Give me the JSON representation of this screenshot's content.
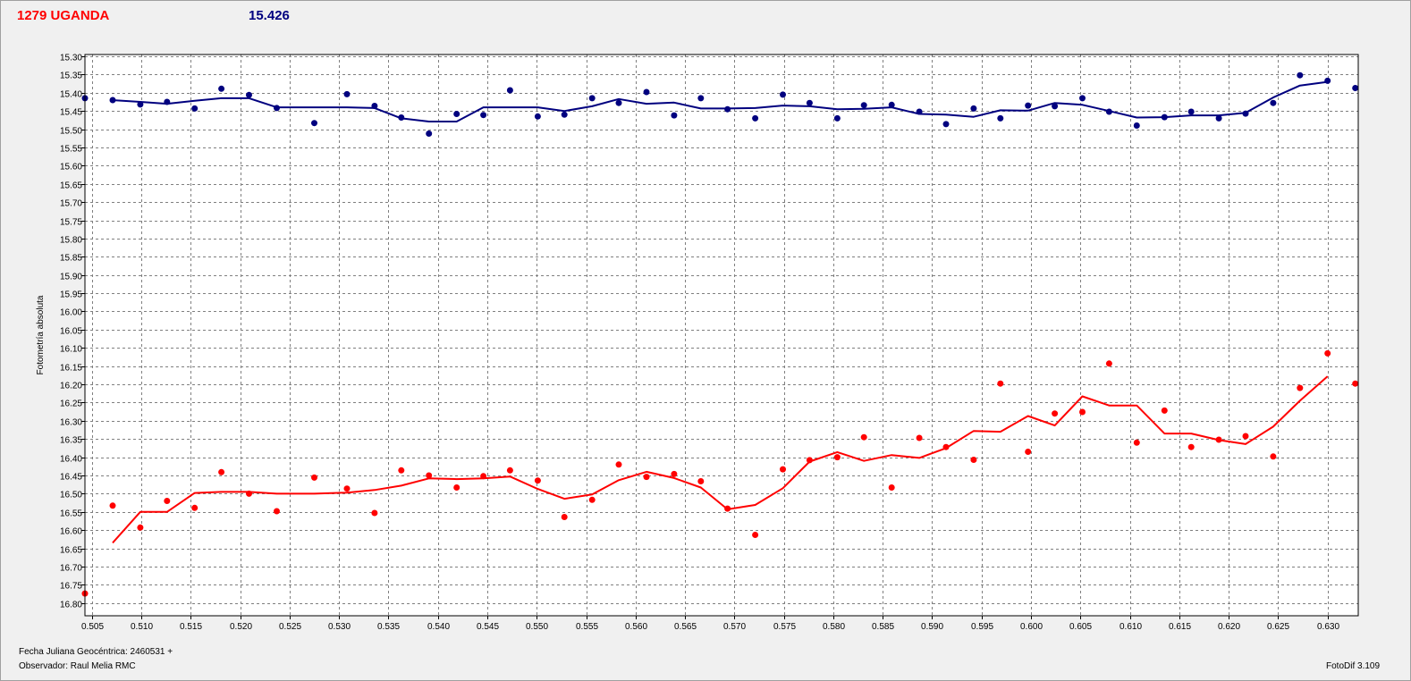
{
  "header": {
    "object_name": "1279 UGANDA",
    "comparison_value": "15.426"
  },
  "footer": {
    "date_label": "Fecha Juliana Geocéntrica: 2460531 +",
    "observer_label": "Observador: Raul Melia RMC",
    "software_label": "FotoDif 3.109"
  },
  "colors": {
    "series_blue": "#00007f",
    "series_red": "#ff0000",
    "grid": "#7f7f7f",
    "plot_bg": "#ffffff",
    "window_bg": "#f0f0f0"
  },
  "chart_data": {
    "type": "scatter",
    "ylabel": "Fotometría absoluta",
    "xlabel": "",
    "y_inverted": true,
    "grid": true,
    "xlim": [
      0.5043,
      0.6331
    ],
    "ylim": [
      15.295,
      16.835
    ],
    "x_ticks": [
      "0.505",
      "0.510",
      "0.515",
      "0.520",
      "0.525",
      "0.530",
      "0.535",
      "0.540",
      "0.545",
      "0.550",
      "0.555",
      "0.560",
      "0.565",
      "0.570",
      "0.575",
      "0.580",
      "0.585",
      "0.590",
      "0.595",
      "0.600",
      "0.605",
      "0.610",
      "0.615",
      "0.620",
      "0.625",
      "0.630"
    ],
    "y_ticks": [
      "15.30",
      "15.35",
      "15.40",
      "15.45",
      "15.50",
      "15.55",
      "15.60",
      "15.65",
      "15.70",
      "15.75",
      "15.80",
      "15.85",
      "15.90",
      "15.95",
      "16.00",
      "16.05",
      "16.10",
      "16.15",
      "16.20",
      "16.25",
      "16.30",
      "16.35",
      "16.40",
      "16.45",
      "16.50",
      "16.55",
      "16.60",
      "16.65",
      "16.70",
      "16.75",
      "16.80"
    ],
    "series": [
      {
        "color": "#00007f",
        "points": [
          [
            0.5043,
            15.415
          ],
          [
            0.5071,
            15.42
          ],
          [
            0.5099,
            15.432
          ],
          [
            0.5126,
            15.425
          ],
          [
            0.5154,
            15.443
          ],
          [
            0.5181,
            15.389
          ],
          [
            0.5209,
            15.406
          ],
          [
            0.5237,
            15.442
          ],
          [
            0.5275,
            15.483
          ],
          [
            0.5308,
            15.404
          ],
          [
            0.5336,
            15.436
          ],
          [
            0.5363,
            15.468
          ],
          [
            0.5391,
            15.512
          ],
          [
            0.5419,
            15.458
          ],
          [
            0.5446,
            15.461
          ],
          [
            0.5473,
            15.393
          ],
          [
            0.5501,
            15.465
          ],
          [
            0.5528,
            15.46
          ],
          [
            0.5556,
            15.415
          ],
          [
            0.5583,
            15.428
          ],
          [
            0.5611,
            15.398
          ],
          [
            0.5639,
            15.462
          ],
          [
            0.5666,
            15.415
          ],
          [
            0.5693,
            15.445
          ],
          [
            0.5721,
            15.47
          ],
          [
            0.5749,
            15.405
          ],
          [
            0.5776,
            15.428
          ],
          [
            0.5804,
            15.47
          ],
          [
            0.5831,
            15.434
          ],
          [
            0.5859,
            15.433
          ],
          [
            0.5887,
            15.452
          ],
          [
            0.5914,
            15.486
          ],
          [
            0.5942,
            15.443
          ],
          [
            0.5969,
            15.47
          ],
          [
            0.5997,
            15.435
          ],
          [
            0.6024,
            15.437
          ],
          [
            0.6052,
            15.415
          ],
          [
            0.6079,
            15.452
          ],
          [
            0.6107,
            15.49
          ],
          [
            0.6135,
            15.467
          ],
          [
            0.6162,
            15.452
          ],
          [
            0.619,
            15.47
          ],
          [
            0.6217,
            15.457
          ],
          [
            0.6245,
            15.428
          ],
          [
            0.6272,
            15.352
          ],
          [
            0.63,
            15.367
          ],
          [
            0.6328,
            15.387
          ]
        ],
        "line": [
          [
            0.5071,
            15.42
          ],
          [
            0.5099,
            15.425
          ],
          [
            0.5126,
            15.43
          ],
          [
            0.5154,
            15.422
          ],
          [
            0.5181,
            15.415
          ],
          [
            0.5209,
            15.415
          ],
          [
            0.5237,
            15.44
          ],
          [
            0.5275,
            15.44
          ],
          [
            0.5308,
            15.44
          ],
          [
            0.5336,
            15.442
          ],
          [
            0.5363,
            15.47
          ],
          [
            0.5391,
            15.479
          ],
          [
            0.5419,
            15.479
          ],
          [
            0.5446,
            15.44
          ],
          [
            0.5473,
            15.44
          ],
          [
            0.5501,
            15.44
          ],
          [
            0.5528,
            15.45
          ],
          [
            0.5556,
            15.437
          ],
          [
            0.5583,
            15.417
          ],
          [
            0.5611,
            15.43
          ],
          [
            0.5639,
            15.427
          ],
          [
            0.5666,
            15.443
          ],
          [
            0.5693,
            15.443
          ],
          [
            0.5721,
            15.442
          ],
          [
            0.5749,
            15.435
          ],
          [
            0.5776,
            15.437
          ],
          [
            0.5804,
            15.445
          ],
          [
            0.5831,
            15.444
          ],
          [
            0.5859,
            15.44
          ],
          [
            0.5887,
            15.458
          ],
          [
            0.5914,
            15.46
          ],
          [
            0.5942,
            15.466
          ],
          [
            0.5969,
            15.448
          ],
          [
            0.5997,
            15.449
          ],
          [
            0.6024,
            15.428
          ],
          [
            0.6052,
            15.433
          ],
          [
            0.6079,
            15.45
          ],
          [
            0.6107,
            15.468
          ],
          [
            0.6135,
            15.467
          ],
          [
            0.6162,
            15.462
          ],
          [
            0.619,
            15.462
          ],
          [
            0.6217,
            15.455
          ],
          [
            0.6245,
            15.413
          ],
          [
            0.6272,
            15.38
          ],
          [
            0.63,
            15.37
          ]
        ]
      },
      {
        "color": "#ff0000",
        "points": [
          [
            0.5043,
            16.774
          ],
          [
            0.5071,
            16.533
          ],
          [
            0.5099,
            16.593
          ],
          [
            0.5126,
            16.52
          ],
          [
            0.5154,
            16.539
          ],
          [
            0.5181,
            16.441
          ],
          [
            0.5209,
            16.5
          ],
          [
            0.5237,
            16.548
          ],
          [
            0.5275,
            16.456
          ],
          [
            0.5308,
            16.486
          ],
          [
            0.5336,
            16.553
          ],
          [
            0.5363,
            16.436
          ],
          [
            0.5391,
            16.45
          ],
          [
            0.5419,
            16.483
          ],
          [
            0.5446,
            16.452
          ],
          [
            0.5473,
            16.436
          ],
          [
            0.5501,
            16.464
          ],
          [
            0.5528,
            16.564
          ],
          [
            0.5556,
            16.517
          ],
          [
            0.5583,
            16.42
          ],
          [
            0.5611,
            16.454
          ],
          [
            0.5639,
            16.446
          ],
          [
            0.5666,
            16.466
          ],
          [
            0.5693,
            16.541
          ],
          [
            0.5721,
            16.613
          ],
          [
            0.5749,
            16.433
          ],
          [
            0.5776,
            16.408
          ],
          [
            0.5804,
            16.4
          ],
          [
            0.5831,
            16.345
          ],
          [
            0.5859,
            16.483
          ],
          [
            0.5887,
            16.347
          ],
          [
            0.5914,
            16.372
          ],
          [
            0.5942,
            16.407
          ],
          [
            0.5969,
            16.198
          ],
          [
            0.5997,
            16.385
          ],
          [
            0.6024,
            16.28
          ],
          [
            0.6052,
            16.276
          ],
          [
            0.6079,
            16.143
          ],
          [
            0.6107,
            16.36
          ],
          [
            0.6135,
            16.272
          ],
          [
            0.6162,
            16.372
          ],
          [
            0.619,
            16.352
          ],
          [
            0.6217,
            16.342
          ],
          [
            0.6245,
            16.398
          ],
          [
            0.6272,
            16.21
          ],
          [
            0.63,
            16.115
          ],
          [
            0.6328,
            16.198
          ]
        ],
        "line": [
          [
            0.5071,
            16.635
          ],
          [
            0.5099,
            16.55
          ],
          [
            0.5126,
            16.55
          ],
          [
            0.5154,
            16.498
          ],
          [
            0.5181,
            16.495
          ],
          [
            0.5209,
            16.495
          ],
          [
            0.5237,
            16.5
          ],
          [
            0.5275,
            16.5
          ],
          [
            0.5308,
            16.497
          ],
          [
            0.5336,
            16.49
          ],
          [
            0.5363,
            16.478
          ],
          [
            0.5391,
            16.458
          ],
          [
            0.5419,
            16.46
          ],
          [
            0.5446,
            16.458
          ],
          [
            0.5473,
            16.453
          ],
          [
            0.5501,
            16.487
          ],
          [
            0.5528,
            16.514
          ],
          [
            0.5556,
            16.502
          ],
          [
            0.5583,
            16.463
          ],
          [
            0.5611,
            16.44
          ],
          [
            0.5639,
            16.457
          ],
          [
            0.5666,
            16.483
          ],
          [
            0.5693,
            16.543
          ],
          [
            0.5721,
            16.531
          ],
          [
            0.5749,
            16.485
          ],
          [
            0.5776,
            16.412
          ],
          [
            0.5804,
            16.386
          ],
          [
            0.5831,
            16.41
          ],
          [
            0.5859,
            16.394
          ],
          [
            0.5887,
            16.402
          ],
          [
            0.5914,
            16.375
          ],
          [
            0.5942,
            16.328
          ],
          [
            0.5969,
            16.33
          ],
          [
            0.5997,
            16.287
          ],
          [
            0.6024,
            16.313
          ],
          [
            0.6052,
            16.233
          ],
          [
            0.6079,
            16.258
          ],
          [
            0.6107,
            16.258
          ],
          [
            0.6135,
            16.335
          ],
          [
            0.6162,
            16.335
          ],
          [
            0.619,
            16.353
          ],
          [
            0.6217,
            16.364
          ],
          [
            0.6245,
            16.316
          ],
          [
            0.6272,
            16.245
          ],
          [
            0.63,
            16.178
          ]
        ]
      }
    ]
  }
}
